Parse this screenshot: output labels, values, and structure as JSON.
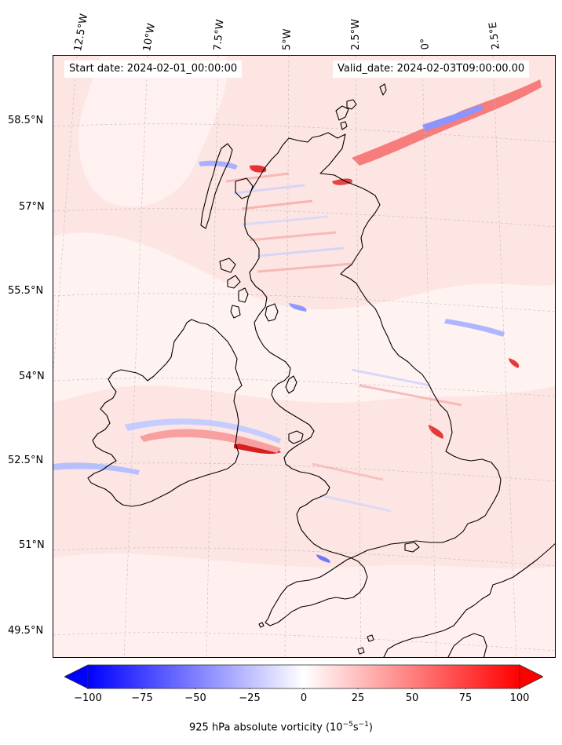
{
  "header": {
    "start_date": "Start date: 2024-02-01_00:00:00",
    "valid_date": "Valid_date: 2024-02-03T09:00:00.00"
  },
  "axes": {
    "lat_labels": [
      "58.5°N",
      "57°N",
      "55.5°N",
      "54°N",
      "52.5°N",
      "51°N",
      "49.5°N"
    ],
    "lon_labels": [
      "12.5°W",
      "10°W",
      "7.5°W",
      "5°W",
      "2.5°W",
      "0°",
      "2.5°E"
    ]
  },
  "colorbar": {
    "ticks": [
      "−100",
      "−75",
      "−50",
      "−25",
      "0",
      "25",
      "50",
      "75",
      "100"
    ],
    "min": -100,
    "max": 100,
    "extend": "both",
    "label": "925 hPa absolute vorticity (10",
    "unit_exp1": "−5",
    "unit_mid": "s",
    "unit_exp2": "−1",
    "unit_close": ")",
    "cmap": "bwr",
    "color_min": "#0000ff",
    "color_mid": "#ffffff",
    "color_max": "#ff0000"
  },
  "map": {
    "background_fill": "#fde8e6",
    "coast_color": "#000000",
    "gridline_color": "#bbbbbb"
  }
}
